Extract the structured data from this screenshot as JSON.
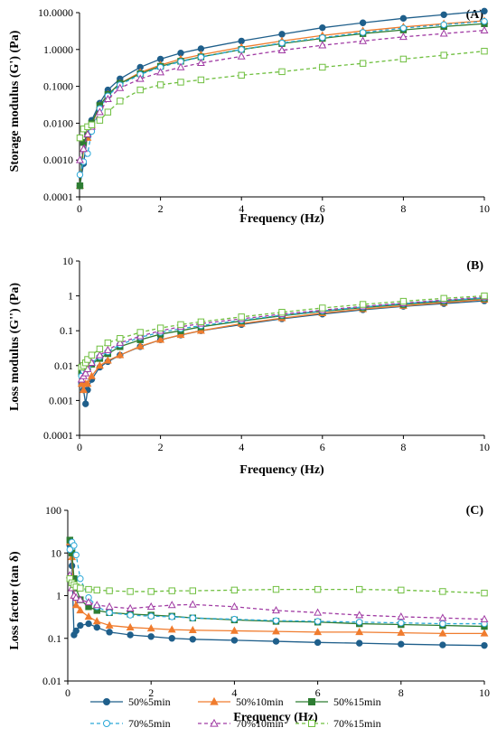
{
  "legend": [
    {
      "name": "50%5min",
      "color": "#1f5f8b",
      "marker": "circle",
      "filled": true,
      "dashed": false
    },
    {
      "name": "50%10min",
      "color": "#f07c2e",
      "marker": "triangle",
      "filled": true,
      "dashed": false
    },
    {
      "name": "50%15min",
      "color": "#2e7d32",
      "marker": "square",
      "filled": true,
      "dashed": false
    },
    {
      "name": "70%5min",
      "color": "#2aa8d8",
      "marker": "circle",
      "filled": false,
      "dashed": true
    },
    {
      "name": "70%10min",
      "color": "#a03aa3",
      "marker": "triangle",
      "filled": false,
      "dashed": true
    },
    {
      "name": "70%15min",
      "color": "#6fbf3f",
      "marker": "square",
      "filled": false,
      "dashed": true
    }
  ],
  "chart_data": [
    {
      "type": "line",
      "panel_label": "(A)",
      "xlabel": "Frequency (Hz)",
      "ylabel": "Storage modulus (G') (Pa)",
      "xlim": [
        0,
        10
      ],
      "ylim": [
        0.0001,
        10
      ],
      "yscale": "log",
      "xticks": [
        "0",
        "2",
        "4",
        "6",
        "8",
        "10"
      ],
      "yticks": [
        "0.0001",
        "0.0010",
        "0.0100",
        "0.1000",
        "1.0000",
        "10.0000"
      ],
      "x": [
        0.01,
        0.1,
        0.2,
        0.3,
        0.5,
        0.7,
        1.0,
        1.5,
        2.0,
        2.5,
        3.0,
        4.0,
        5.0,
        6.0,
        7.0,
        8.0,
        9.0,
        10.0
      ],
      "series": [
        {
          "name": "50%5min",
          "values": [
            0.0002,
            0.0008,
            0.005,
            0.012,
            0.035,
            0.08,
            0.16,
            0.33,
            0.55,
            0.8,
            1.05,
            1.7,
            2.6,
            3.9,
            5.3,
            7.0,
            8.8,
            11.0
          ]
        },
        {
          "name": "50%10min",
          "values": [
            0.0002,
            0.002,
            0.004,
            0.009,
            0.03,
            0.06,
            0.12,
            0.24,
            0.38,
            0.55,
            0.72,
            1.15,
            1.7,
            2.4,
            3.2,
            4.1,
            5.0,
            6.0
          ]
        },
        {
          "name": "50%15min",
          "values": [
            0.0002,
            0.003,
            0.005,
            0.01,
            0.03,
            0.06,
            0.12,
            0.22,
            0.35,
            0.48,
            0.63,
            1.0,
            1.45,
            2.0,
            2.7,
            3.4,
            4.2,
            5.0
          ]
        },
        {
          "name": "70%5min",
          "values": [
            0.0004,
            0.0009,
            0.0015,
            0.006,
            0.025,
            0.055,
            0.11,
            0.21,
            0.33,
            0.47,
            0.62,
            1.0,
            1.5,
            2.1,
            2.9,
            3.8,
            4.7,
            5.8
          ]
        },
        {
          "name": "70%10min",
          "values": [
            0.001,
            0.002,
            0.005,
            0.008,
            0.02,
            0.045,
            0.09,
            0.16,
            0.24,
            0.33,
            0.43,
            0.65,
            0.95,
            1.3,
            1.7,
            2.2,
            2.7,
            3.3
          ]
        },
        {
          "name": "70%15min",
          "values": [
            0.004,
            0.007,
            0.008,
            0.009,
            0.012,
            0.02,
            0.04,
            0.08,
            0.11,
            0.13,
            0.15,
            0.2,
            0.25,
            0.33,
            0.42,
            0.55,
            0.7,
            0.9
          ]
        }
      ]
    },
    {
      "type": "line",
      "panel_label": "(B)",
      "xlabel": "Frequency (Hz)",
      "ylabel": "Loss modulus (G'') (Pa)",
      "xlim": [
        0,
        10
      ],
      "ylim": [
        0.0001,
        10
      ],
      "yscale": "log",
      "xticks": [
        "0",
        "2",
        "4",
        "6",
        "8",
        "10"
      ],
      "yticks": [
        "0.0001",
        "0.001",
        "0.01",
        "0.1",
        "1",
        "10"
      ],
      "x": [
        0.05,
        0.1,
        0.15,
        0.2,
        0.3,
        0.5,
        0.7,
        1.0,
        1.5,
        2.0,
        2.5,
        3.0,
        4.0,
        5.0,
        6.0,
        7.0,
        8.0,
        9.0,
        10.0
      ],
      "series": [
        {
          "name": "50%5min",
          "values": [
            0.003,
            0.002,
            0.0008,
            0.002,
            0.004,
            0.009,
            0.013,
            0.02,
            0.035,
            0.055,
            0.075,
            0.1,
            0.15,
            0.22,
            0.3,
            0.4,
            0.5,
            0.6,
            0.72
          ]
        },
        {
          "name": "50%10min",
          "values": [
            0.003,
            0.002,
            0.003,
            0.003,
            0.005,
            0.01,
            0.014,
            0.02,
            0.036,
            0.055,
            0.076,
            0.1,
            0.16,
            0.23,
            0.32,
            0.42,
            0.52,
            0.64,
            0.78
          ]
        },
        {
          "name": "50%15min",
          "values": [
            0.006,
            0.008,
            0.008,
            0.009,
            0.011,
            0.016,
            0.022,
            0.035,
            0.055,
            0.08,
            0.1,
            0.13,
            0.19,
            0.27,
            0.36,
            0.46,
            0.57,
            0.7,
            0.85
          ]
        },
        {
          "name": "70%5min",
          "values": [
            0.005,
            0.007,
            0.008,
            0.009,
            0.012,
            0.018,
            0.025,
            0.04,
            0.065,
            0.09,
            0.115,
            0.14,
            0.2,
            0.28,
            0.37,
            0.48,
            0.6,
            0.73,
            0.88
          ]
        },
        {
          "name": "70%10min",
          "values": [
            0.004,
            0.005,
            0.006,
            0.008,
            0.012,
            0.02,
            0.028,
            0.045,
            0.07,
            0.1,
            0.13,
            0.16,
            0.22,
            0.3,
            0.39,
            0.5,
            0.62,
            0.76,
            0.92
          ]
        },
        {
          "name": "70%15min",
          "values": [
            0.009,
            0.01,
            0.012,
            0.015,
            0.02,
            0.03,
            0.045,
            0.06,
            0.09,
            0.12,
            0.15,
            0.18,
            0.25,
            0.34,
            0.45,
            0.57,
            0.7,
            0.85,
            1.0
          ]
        }
      ]
    },
    {
      "type": "line",
      "panel_label": "(C)",
      "xlabel": "Frequency (Hz)",
      "ylabel": "Loss factor (tan δ)",
      "xlim": [
        0,
        10
      ],
      "ylim": [
        0.01,
        100
      ],
      "yscale": "log",
      "xticks": [
        "0",
        "2",
        "4",
        "6",
        "8",
        "10"
      ],
      "yticks": [
        "0.01",
        "0.1",
        "1",
        "10",
        "100"
      ],
      "x": [
        0.05,
        0.1,
        0.15,
        0.2,
        0.3,
        0.5,
        0.7,
        1.0,
        1.5,
        2.0,
        2.5,
        3.0,
        4.0,
        5.0,
        6.0,
        7.0,
        8.0,
        9.0,
        10.0
      ],
      "series": [
        {
          "name": "50%5min",
          "values": [
            15,
            5,
            0.12,
            0.15,
            0.2,
            0.22,
            0.18,
            0.14,
            0.12,
            0.11,
            0.1,
            0.095,
            0.09,
            0.085,
            0.08,
            0.077,
            0.073,
            0.07,
            0.068
          ]
        },
        {
          "name": "50%10min",
          "values": [
            18,
            8,
            1.0,
            0.6,
            0.45,
            0.32,
            0.25,
            0.2,
            0.18,
            0.17,
            0.16,
            0.155,
            0.15,
            0.145,
            0.14,
            0.14,
            0.135,
            0.13,
            0.13
          ]
        },
        {
          "name": "50%15min",
          "values": [
            20,
            10,
            2.5,
            1.5,
            0.8,
            0.55,
            0.45,
            0.4,
            0.37,
            0.35,
            0.33,
            0.3,
            0.27,
            0.25,
            0.24,
            0.22,
            0.21,
            0.2,
            0.19
          ]
        },
        {
          "name": "70%5min",
          "values": [
            12,
            18,
            15,
            9,
            2.5,
            0.9,
            0.55,
            0.4,
            0.35,
            0.33,
            0.32,
            0.3,
            0.28,
            0.26,
            0.25,
            0.24,
            0.23,
            0.22,
            0.22
          ]
        },
        {
          "name": "70%10min",
          "values": [
            3,
            1.5,
            1.0,
            0.9,
            0.8,
            0.7,
            0.6,
            0.55,
            0.5,
            0.55,
            0.6,
            0.62,
            0.55,
            0.45,
            0.4,
            0.35,
            0.32,
            0.3,
            0.28
          ]
        },
        {
          "name": "70%15min",
          "values": [
            2.5,
            2.0,
            1.8,
            1.6,
            1.5,
            1.4,
            1.35,
            1.3,
            1.25,
            1.25,
            1.3,
            1.3,
            1.35,
            1.4,
            1.4,
            1.4,
            1.35,
            1.25,
            1.15
          ]
        }
      ]
    }
  ]
}
